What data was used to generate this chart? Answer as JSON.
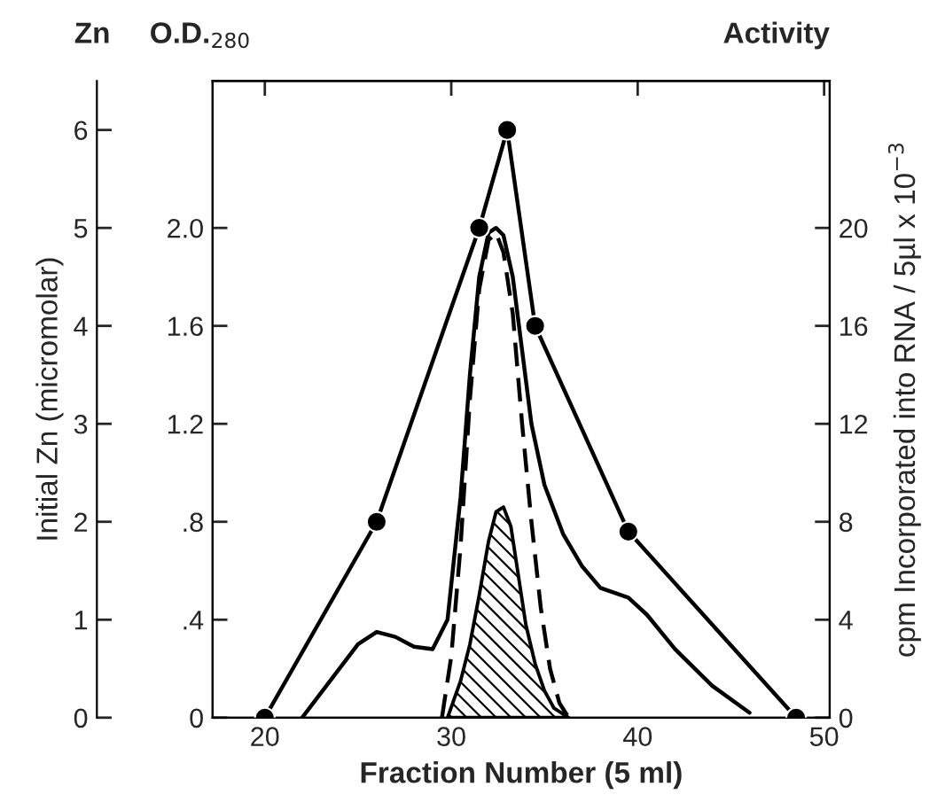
{
  "chart_data": {
    "type": "line",
    "xlabel": "Fraction Number (5 ml)",
    "ylabel": "O.D.$_{280}$",
    "y2label": "cpm Incorporated into RNA / 5µl x 10$^{−3}$",
    "y3label": "Initial Zn (micromolar)",
    "annotations": [
      "Zn",
      "Activity"
    ],
    "xlim": [
      17.2,
      50.3
    ],
    "xticks": [
      20,
      30,
      40,
      50
    ],
    "ylim": [
      0,
      2.6
    ],
    "yticks": [
      {
        "value": 0,
        "label": "0"
      },
      {
        "value": 0.4,
        "label": ".4"
      },
      {
        "value": 0.8,
        "label": ".8"
      },
      {
        "value": 1.2,
        "label": "1.2"
      },
      {
        "value": 1.6,
        "label": "1.6"
      },
      {
        "value": 2.0,
        "label": "2.0"
      }
    ],
    "y2lim": [
      0,
      26
    ],
    "y2ticks": [
      0,
      4,
      8,
      12,
      16,
      20
    ],
    "y3lim": [
      0,
      6.5
    ],
    "y3ticks": [
      0,
      1,
      2,
      3,
      4,
      5,
      6
    ],
    "grid": false,
    "legend": false,
    "series": [
      {
        "axis": "y3",
        "marker": "circle",
        "line_style": "solid",
        "color": "#000000",
        "x": [
          20,
          26,
          31.5,
          33,
          34.5,
          39.5,
          48.5
        ],
        "values": [
          0,
          2,
          5,
          6,
          4,
          1.9,
          0
        ]
      },
      {
        "axis": "y",
        "marker": "none",
        "line_style": "solid",
        "color": "#000000",
        "x": [
          22,
          23.5,
          25,
          26,
          27,
          28,
          29,
          29.8,
          30.5,
          31,
          31.5,
          32,
          32.4,
          32.8,
          33.3,
          33.8,
          34.3,
          35,
          36,
          37,
          38,
          39.5,
          40.5,
          42,
          44,
          46
        ],
        "values": [
          0,
          0.15,
          0.3,
          0.35,
          0.33,
          0.29,
          0.28,
          0.4,
          0.9,
          1.4,
          1.8,
          1.98,
          2.0,
          1.97,
          1.8,
          1.5,
          1.2,
          0.95,
          0.75,
          0.62,
          0.53,
          0.49,
          0.42,
          0.28,
          0.13,
          0.02
        ]
      },
      {
        "axis": "y",
        "marker": "none",
        "line_style": "dashed",
        "color": "#000000",
        "x": [
          29.5,
          30,
          30.5,
          31,
          31.5,
          32,
          32.4,
          32.8,
          33.3,
          33.8,
          34.3,
          34.8,
          35.3,
          35.8,
          36.3
        ],
        "values": [
          0,
          0.25,
          0.7,
          1.3,
          1.75,
          1.95,
          1.98,
          1.9,
          1.65,
          1.2,
          0.8,
          0.45,
          0.2,
          0.06,
          0
        ]
      },
      {
        "type": "area",
        "axis": "y2",
        "color": "#000000",
        "x": [
          29.8,
          30.5,
          31,
          31.5,
          32,
          32.4,
          32.8,
          33.2,
          33.6,
          34,
          34.5,
          35,
          35.5,
          36.3
        ],
        "values": [
          0,
          1.5,
          3,
          5,
          7.2,
          8.4,
          8.6,
          7.8,
          5.8,
          3.8,
          2.2,
          1.1,
          0.4,
          0
        ]
      }
    ]
  }
}
